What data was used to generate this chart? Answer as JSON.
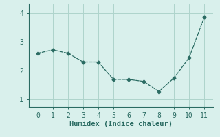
{
  "x": [
    0,
    1,
    2,
    3,
    4,
    5,
    6,
    7,
    8,
    9,
    10,
    11
  ],
  "y": [
    2.6,
    2.72,
    2.6,
    2.3,
    2.3,
    1.7,
    1.7,
    1.63,
    1.28,
    1.75,
    2.45,
    3.85
  ],
  "line_color": "#2a6b62",
  "marker": "D",
  "marker_size": 2.5,
  "background_color": "#d9f0ec",
  "grid_color": "#aed4cc",
  "axis_color": "#2a6b62",
  "xlabel": "Humidex (Indice chaleur)",
  "xlabel_fontsize": 7.5,
  "tick_fontsize": 7,
  "ylim": [
    0.75,
    4.3
  ],
  "xlim": [
    -0.6,
    11.6
  ],
  "yticks": [
    1,
    2,
    3,
    4
  ],
  "xticks": [
    0,
    1,
    2,
    3,
    4,
    5,
    6,
    7,
    8,
    9,
    10,
    11
  ]
}
